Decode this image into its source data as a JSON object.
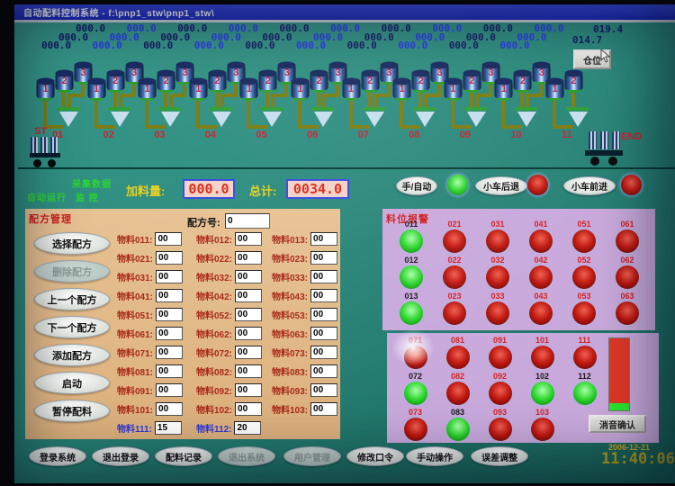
{
  "palette": {
    "teal_bg": "#2d8e80",
    "titlebar_blue": "#2334d0",
    "panel_orange": "#e3bb88",
    "panel_purple": "#c9a9dc",
    "lamp_red": "#c01810",
    "lamp_green": "#2ad42a",
    "value_red": "#e02818",
    "label_yellow": "#e8d020"
  },
  "window": {
    "title": "自动配料控制系统 - f:\\pnp1_stw\\pnp1_stw\\"
  },
  "top": {
    "view_button": "仓位",
    "start_label": "ST",
    "end_label": "END",
    "groups": [
      {
        "id": "01",
        "hoppers": [
          "1",
          "2",
          "3"
        ],
        "values": [
          "000.0",
          "000.0",
          "000.0"
        ]
      },
      {
        "id": "02",
        "hoppers": [
          "1",
          "2",
          "3"
        ],
        "values": [
          "000.0",
          "000.0",
          "000.0"
        ]
      },
      {
        "id": "03",
        "hoppers": [
          "1",
          "2",
          "3"
        ],
        "values": [
          "000.0",
          "000.0",
          "000.0"
        ]
      },
      {
        "id": "04",
        "hoppers": [
          "1",
          "2",
          "3"
        ],
        "values": [
          "000.0",
          "000.0",
          "000.0"
        ]
      },
      {
        "id": "05",
        "hoppers": [
          "1",
          "2",
          "3"
        ],
        "values": [
          "000.0",
          "000.0",
          "000.0"
        ]
      },
      {
        "id": "06",
        "hoppers": [
          "1",
          "2",
          "3"
        ],
        "values": [
          "000.0",
          "000.0",
          "000.0"
        ]
      },
      {
        "id": "07",
        "hoppers": [
          "1",
          "2",
          "3"
        ],
        "values": [
          "000.0",
          "000.0",
          "000.0"
        ]
      },
      {
        "id": "08",
        "hoppers": [
          "1",
          "2",
          "3"
        ],
        "values": [
          "000.0",
          "000.0",
          "000.0"
        ]
      },
      {
        "id": "09",
        "hoppers": [
          "1",
          "2",
          "3"
        ],
        "values": [
          "000.0",
          "000.0",
          "000.0"
        ]
      },
      {
        "id": "10",
        "hoppers": [
          "1",
          "2",
          "3"
        ],
        "values": [
          "000.0",
          "000.0",
          "000.0"
        ]
      },
      {
        "id": "11",
        "hoppers": [
          "1",
          "2"
        ],
        "values": [
          "014.7",
          "019.4"
        ]
      }
    ]
  },
  "status": {
    "collect": "采集数据",
    "auto_run": "自动运行",
    "monitor": "监 控",
    "feed_label": "加料量:",
    "feed_value": "000.0",
    "total_label": "总计:",
    "total_value": "0034.0",
    "mode_buttons": [
      {
        "label": "手/自动",
        "light": "green"
      },
      {
        "label": "小车后退",
        "light": "red"
      },
      {
        "label": "小车前进",
        "light": "red"
      }
    ]
  },
  "recipe": {
    "title": "配方管理",
    "recipe_no_label": "配方号:",
    "recipe_no_value": "0",
    "buttons": [
      {
        "label": "选择配方",
        "enabled": true
      },
      {
        "label": "删除配方",
        "enabled": false
      },
      {
        "label": "上一个配方",
        "enabled": true
      },
      {
        "label": "下一个配方",
        "enabled": true
      },
      {
        "label": "添加配方",
        "enabled": true
      },
      {
        "label": "启动",
        "enabled": true
      },
      {
        "label": "暂停配料",
        "enabled": true
      }
    ],
    "materials": [
      [
        {
          "l": "物料011:",
          "v": "00"
        },
        {
          "l": "物料012:",
          "v": "00"
        },
        {
          "l": "物料013:",
          "v": "00"
        }
      ],
      [
        {
          "l": "物料021:",
          "v": "00"
        },
        {
          "l": "物料022:",
          "v": "00"
        },
        {
          "l": "物料023:",
          "v": "00"
        }
      ],
      [
        {
          "l": "物料031:",
          "v": "00"
        },
        {
          "l": "物料032:",
          "v": "00"
        },
        {
          "l": "物料033:",
          "v": "00"
        }
      ],
      [
        {
          "l": "物料041:",
          "v": "00"
        },
        {
          "l": "物料042:",
          "v": "00"
        },
        {
          "l": "物料043:",
          "v": "00"
        }
      ],
      [
        {
          "l": "物料051:",
          "v": "00"
        },
        {
          "l": "物料052:",
          "v": "00"
        },
        {
          "l": "物料053:",
          "v": "00"
        }
      ],
      [
        {
          "l": "物料061:",
          "v": "00"
        },
        {
          "l": "物料062:",
          "v": "00"
        },
        {
          "l": "物料063:",
          "v": "00"
        }
      ],
      [
        {
          "l": "物料071:",
          "v": "00"
        },
        {
          "l": "物料072:",
          "v": "00"
        },
        {
          "l": "物料073:",
          "v": "00"
        }
      ],
      [
        {
          "l": "物料081:",
          "v": "00"
        },
        {
          "l": "物料082:",
          "v": "00"
        },
        {
          "l": "物料083:",
          "v": "00"
        }
      ],
      [
        {
          "l": "物料091:",
          "v": "00"
        },
        {
          "l": "物料092:",
          "v": "00"
        },
        {
          "l": "物料093:",
          "v": "00"
        }
      ],
      [
        {
          "l": "物料101:",
          "v": "00"
        },
        {
          "l": "物料102:",
          "v": "00"
        },
        {
          "l": "物料103:",
          "v": "00"
        }
      ],
      [
        {
          "l": "物料111:",
          "v": "15",
          "hl": true
        },
        {
          "l": "物料112:",
          "v": "20",
          "hl": true
        }
      ]
    ]
  },
  "alarm": {
    "title": "料位报警",
    "panel1_rows": [
      [
        {
          "id": "011",
          "s": "green"
        },
        {
          "id": "021",
          "s": "red"
        },
        {
          "id": "031",
          "s": "red"
        },
        {
          "id": "041",
          "s": "red"
        },
        {
          "id": "051",
          "s": "red"
        },
        {
          "id": "061",
          "s": "red"
        }
      ],
      [
        {
          "id": "012",
          "s": "green"
        },
        {
          "id": "022",
          "s": "red"
        },
        {
          "id": "032",
          "s": "red"
        },
        {
          "id": "042",
          "s": "red"
        },
        {
          "id": "052",
          "s": "red"
        },
        {
          "id": "062",
          "s": "red"
        }
      ],
      [
        {
          "id": "013",
          "s": "green"
        },
        {
          "id": "023",
          "s": "red"
        },
        {
          "id": "033",
          "s": "red"
        },
        {
          "id": "043",
          "s": "red"
        },
        {
          "id": "053",
          "s": "red"
        },
        {
          "id": "063",
          "s": "red"
        }
      ]
    ],
    "panel2_rows": [
      [
        {
          "id": "071",
          "s": "red"
        },
        {
          "id": "081",
          "s": "red"
        },
        {
          "id": "091",
          "s": "red"
        },
        {
          "id": "101",
          "s": "red"
        },
        {
          "id": "111",
          "s": "red"
        }
      ],
      [
        {
          "id": "072",
          "s": "green"
        },
        {
          "id": "082",
          "s": "red"
        },
        {
          "id": "092",
          "s": "red"
        },
        {
          "id": "102",
          "s": "green"
        },
        {
          "id": "112",
          "s": "green"
        }
      ],
      [
        {
          "id": "073",
          "s": "red"
        },
        {
          "id": "083",
          "s": "green"
        },
        {
          "id": "093",
          "s": "red"
        },
        {
          "id": "103",
          "s": "red"
        }
      ]
    ],
    "mute_button": "消音确认"
  },
  "bottom": {
    "buttons": [
      {
        "label": "登录系统",
        "enabled": true
      },
      {
        "label": "退出登录",
        "enabled": true
      },
      {
        "label": "配料记录",
        "enabled": true
      },
      {
        "label": "退出系统",
        "enabled": false
      },
      {
        "label": "用户管理",
        "enabled": false
      },
      {
        "label": "修改口令",
        "enabled": true
      },
      {
        "label": "手动操作",
        "enabled": true
      },
      {
        "label": "误差调整",
        "enabled": true
      }
    ]
  },
  "clock": {
    "date": "2006-12-21",
    "time": "11:40:06"
  }
}
